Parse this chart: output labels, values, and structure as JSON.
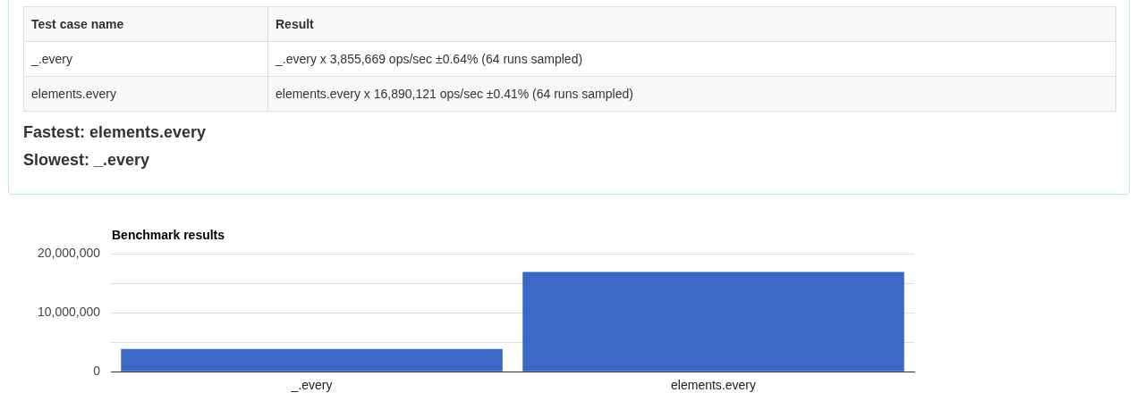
{
  "chart_data": [
    {
      "type": "other",
      "annotations": [
        "Test case name",
        "Result",
        "_.every",
        "_.every x 3,855,669 ops/sec ±0.64% (64 runs sampled)",
        "elements.every",
        "elements.every x 16,890,121 ops/sec ±0.41% (64 runs sampled)",
        "Fastest: elements.every",
        "Slowest: _.every"
      ]
    },
    {
      "type": "bar",
      "title": "Benchmark results",
      "categories": [
        "_.every",
        "elements.every"
      ],
      "values": [
        3855669,
        16890121
      ],
      "color": "#3c68c8",
      "ylim": [
        0,
        20000000
      ],
      "yticks": [
        0,
        {
          "value": 5000000,
          "label": null
        },
        {
          "value": 10000000,
          "label": "10,000,000"
        },
        {
          "value": 15000000,
          "label": null
        },
        {
          "value": 20000000,
          "label": "20,000,000"
        }
      ],
      "grid": "y",
      "legend": false
    }
  ]
}
